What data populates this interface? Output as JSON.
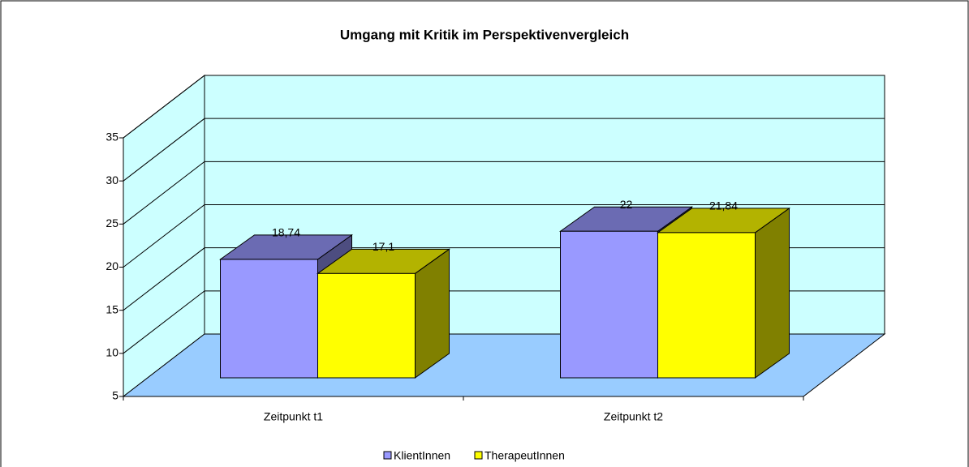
{
  "chart_data": {
    "type": "bar3d",
    "title": "Umgang mit Kritik im Perspektivenvergleich",
    "categories": [
      "Zeitpunkt t1",
      "Zeitpunkt t2"
    ],
    "series": [
      {
        "name": "KlientInnen",
        "color": "#9999ff",
        "values": [
          18.74,
          22
        ],
        "value_labels": [
          "18,74",
          "22"
        ]
      },
      {
        "name": "TherapeutInnen",
        "color": "#ffff00",
        "values": [
          17.1,
          21.84
        ],
        "value_labels": [
          "17,1",
          "21,84"
        ]
      }
    ],
    "ylim": [
      5,
      35
    ],
    "yticks": [
      5,
      10,
      15,
      20,
      25,
      30,
      35
    ],
    "grid": true,
    "legend": "bottom"
  }
}
